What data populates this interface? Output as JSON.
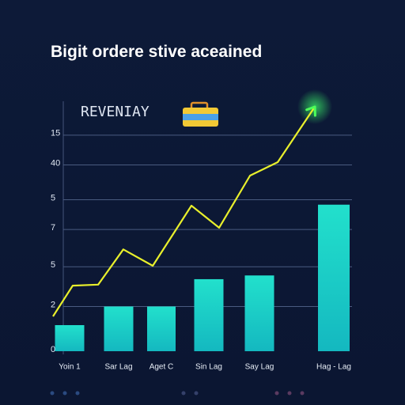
{
  "chart_data": {
    "type": "bar",
    "title": "Bigit ordere stive aceained",
    "legend_label": "REVENIAY",
    "categories": [
      "Yoin 1",
      "Sar Lag",
      "Aget C",
      "Sin Lag",
      "Say Lag",
      "Hag - Lag"
    ],
    "values": [
      10.5,
      18,
      18,
      29,
      30.5,
      59
    ],
    "color": "#1fd8c8",
    "ylim": [
      0,
      100
    ],
    "yticks": [
      {
        "value": 87,
        "label": "15"
      },
      {
        "value": 75,
        "label": "40"
      },
      {
        "value": 61,
        "label": "5"
      },
      {
        "value": 49,
        "label": "7"
      },
      {
        "value": 34,
        "label": "5"
      },
      {
        "value": 18,
        "label": "2"
      },
      0
    ],
    "grid": true,
    "line": {
      "type": "line",
      "color": "#e8ef2c",
      "xlim": [
        0,
        100
      ],
      "x": [
        1.3,
        7.7,
        16,
        24.2,
        33.8,
        46.4,
        55.4,
        65.5,
        74.5,
        86.6
      ],
      "values": [
        14,
        26.4,
        26.8,
        41,
        34.4,
        58.6,
        49.7,
        70.7,
        76.1,
        98.4
      ]
    }
  }
}
